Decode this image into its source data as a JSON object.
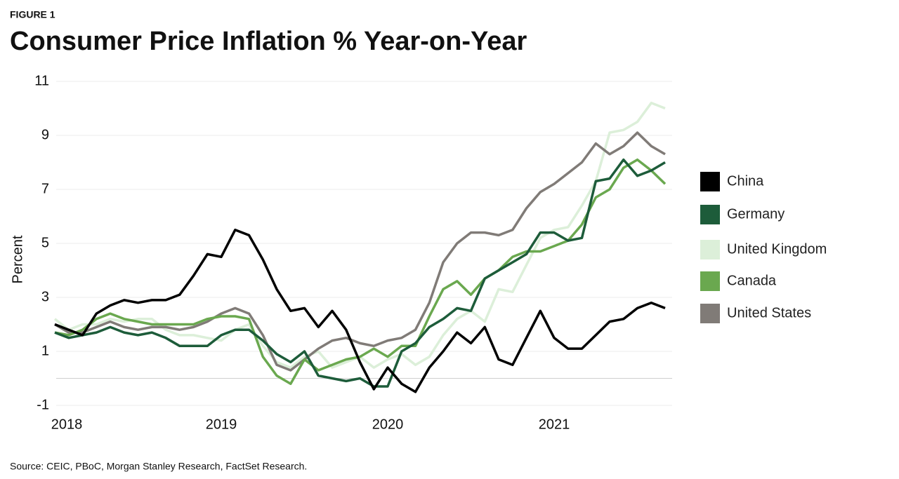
{
  "figure_label": "FIGURE 1",
  "source": "Source: CEIC, PBoC, Morgan Stanley Research, FactSet Research.",
  "chart_data": {
    "type": "line",
    "title": "Consumer Price Inflation % Year-on-Year",
    "y_label": "Percent",
    "categories": [
      "2018",
      null,
      null,
      null,
      null,
      null,
      null,
      null,
      null,
      null,
      null,
      null,
      "2019",
      null,
      null,
      null,
      null,
      null,
      null,
      null,
      null,
      null,
      null,
      null,
      "2020",
      null,
      null,
      null,
      null,
      null,
      null,
      null,
      null,
      null,
      null,
      null,
      "2021",
      null,
      null,
      null,
      null,
      null,
      null,
      null,
      null
    ],
    "ylim": [
      -1,
      11
    ],
    "yticks": [
      11,
      9,
      7,
      5,
      3,
      1,
      -1
    ],
    "grid": true,
    "legend": "right",
    "series": [
      {
        "name": "China",
        "color": "#000000",
        "values": [
          2.0,
          1.8,
          1.6,
          2.4,
          2.7,
          2.9,
          2.8,
          2.9,
          2.9,
          3.1,
          3.8,
          4.6,
          4.5,
          5.5,
          5.3,
          4.4,
          3.3,
          2.5,
          2.6,
          1.9,
          2.5,
          1.8,
          0.6,
          -0.4,
          0.4,
          -0.2,
          -0.5,
          0.4,
          1.0,
          1.7,
          1.3,
          1.9,
          0.7,
          0.5,
          1.5,
          2.5,
          1.5,
          1.1,
          1.1,
          1.6,
          2.1,
          2.2,
          2.6,
          2.8,
          2.6
        ]
      },
      {
        "name": "Germany",
        "color": "#1d5c3a",
        "values": [
          1.7,
          1.5,
          1.6,
          1.7,
          1.9,
          1.7,
          1.6,
          1.7,
          1.5,
          1.2,
          1.2,
          1.2,
          1.6,
          1.8,
          1.8,
          1.4,
          0.9,
          0.6,
          1.0,
          0.1,
          0.0,
          -0.1,
          0.0,
          -0.3,
          -0.3,
          1.0,
          1.3,
          1.9,
          2.2,
          2.6,
          2.5,
          3.7,
          4.0,
          4.3,
          4.6,
          5.4,
          5.4,
          5.1,
          5.2,
          7.3,
          7.4,
          8.1,
          7.5,
          7.7,
          8.0
        ]
      },
      {
        "name": "United Kingdom",
        "color": "#dcefd9",
        "values": [
          2.2,
          1.8,
          2.0,
          2.0,
          2.2,
          2.1,
          2.2,
          2.2,
          1.8,
          1.6,
          1.6,
          1.5,
          1.4,
          1.8,
          2.0,
          1.2,
          0.6,
          0.4,
          0.8,
          1.0,
          0.4,
          0.6,
          0.8,
          0.4,
          0.7,
          0.9,
          0.5,
          0.8,
          1.6,
          2.2,
          2.5,
          2.1,
          3.3,
          3.2,
          4.2,
          5.2,
          5.5,
          5.6,
          6.4,
          7.3,
          9.1,
          9.2,
          9.5,
          10.2,
          10.0
        ]
      },
      {
        "name": "Canada",
        "color": "#6aa84f",
        "values": [
          1.7,
          1.6,
          1.8,
          2.2,
          2.4,
          2.2,
          2.1,
          2.0,
          2.0,
          2.0,
          2.0,
          2.2,
          2.3,
          2.3,
          2.2,
          0.8,
          0.1,
          -0.2,
          0.7,
          0.3,
          0.5,
          0.7,
          0.8,
          1.1,
          0.8,
          1.2,
          1.2,
          2.3,
          3.3,
          3.6,
          3.1,
          3.7,
          4.0,
          4.5,
          4.7,
          4.7,
          4.9,
          5.1,
          5.7,
          6.7,
          7.0,
          7.8,
          8.1,
          7.7,
          7.2
        ]
      },
      {
        "name": "United States",
        "color": "#807b77",
        "values": [
          2.0,
          1.7,
          1.7,
          1.9,
          2.1,
          1.9,
          1.8,
          1.9,
          1.9,
          1.8,
          1.9,
          2.1,
          2.4,
          2.6,
          2.4,
          1.6,
          0.5,
          0.3,
          0.7,
          1.1,
          1.4,
          1.5,
          1.3,
          1.2,
          1.4,
          1.5,
          1.8,
          2.8,
          4.3,
          5.0,
          5.4,
          5.4,
          5.3,
          5.5,
          6.3,
          6.9,
          7.2,
          7.6,
          8.0,
          8.7,
          8.3,
          8.6,
          9.1,
          8.6,
          8.3
        ]
      }
    ]
  }
}
